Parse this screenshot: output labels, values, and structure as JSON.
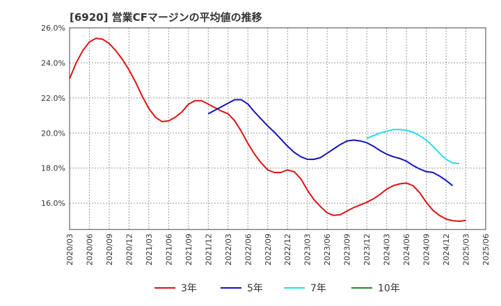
{
  "title": "[6920]  営業CFマージンの平均値の推移",
  "chart_data": {
    "type": "line",
    "ylim": [
      14.5,
      26.0
    ],
    "y_ticks": [
      "26.0%",
      "24.0%",
      "22.0%",
      "20.0%",
      "18.0%",
      "16.0%"
    ],
    "y_tick_values": [
      26,
      24,
      22,
      20,
      18,
      16
    ],
    "x_ticks": [
      "2020/03",
      "2020/06",
      "2020/09",
      "2020/12",
      "2021/03",
      "2021/06",
      "2021/09",
      "2021/12",
      "2022/03",
      "2022/06",
      "2022/09",
      "2022/12",
      "2023/03",
      "2023/06",
      "2023/09",
      "2023/12",
      "2024/03",
      "2024/06",
      "2024/09",
      "2024/12",
      "2025/03",
      "2025/06"
    ],
    "grid": true,
    "legend_position": "bottom",
    "series": [
      {
        "name": "3年",
        "color": "#dd1111",
        "start": "2020/03",
        "values": [
          23.1,
          24.0,
          24.7,
          25.2,
          25.4,
          25.35,
          25.1,
          24.7,
          24.2,
          23.6,
          22.9,
          22.1,
          21.4,
          20.9,
          20.65,
          20.7,
          20.9,
          21.2,
          21.65,
          21.85,
          21.85,
          21.65,
          21.45,
          21.25,
          21.1,
          20.7,
          20.1,
          19.4,
          18.8,
          18.3,
          17.9,
          17.75,
          17.75,
          17.9,
          17.8,
          17.4,
          16.75,
          16.2,
          15.8,
          15.45,
          15.3,
          15.35,
          15.55,
          15.75,
          15.9,
          16.05,
          16.25,
          16.5,
          16.8,
          17.0,
          17.1,
          17.15,
          17.0,
          16.6,
          16.05,
          15.6,
          15.3,
          15.1,
          15.0,
          14.97,
          15.02
        ]
      },
      {
        "name": "5年",
        "color": "#1111bb",
        "start": "2021/12",
        "values": [
          21.1,
          21.3,
          21.5,
          21.7,
          21.9,
          21.9,
          21.65,
          21.2,
          20.8,
          20.4,
          20.05,
          19.65,
          19.25,
          18.9,
          18.65,
          18.5,
          18.5,
          18.6,
          18.85,
          19.1,
          19.35,
          19.55,
          19.6,
          19.55,
          19.45,
          19.25,
          19.0,
          18.8,
          18.65,
          18.55,
          18.4,
          18.15,
          17.95,
          17.8,
          17.75,
          17.55,
          17.3,
          17.0
        ]
      },
      {
        "name": "7年",
        "color": "#22ddee",
        "start": "2023/12",
        "values": [
          19.7,
          19.85,
          20.0,
          20.1,
          20.2,
          20.2,
          20.15,
          20.05,
          19.85,
          19.6,
          19.25,
          18.85,
          18.5,
          18.3,
          18.25
        ]
      },
      {
        "name": "10年",
        "color": "#228822",
        "start": "2025/03",
        "values": []
      }
    ]
  }
}
